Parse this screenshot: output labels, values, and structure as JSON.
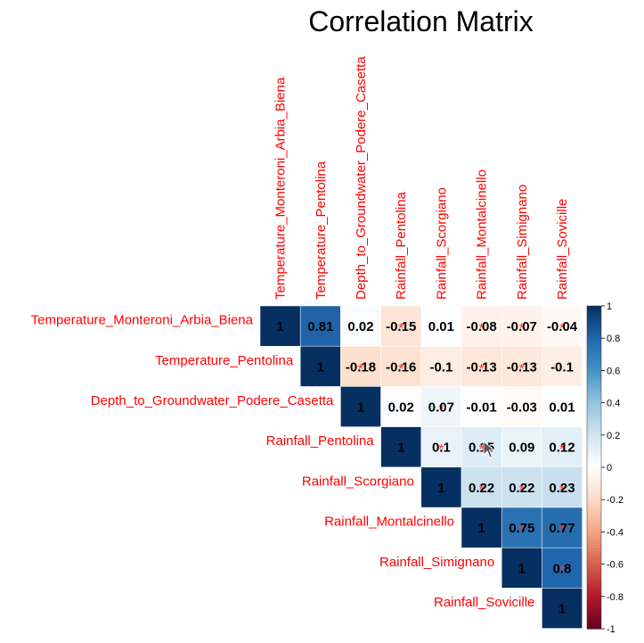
{
  "title": "Correlation Matrix",
  "colors": {
    "label": "#ff0000",
    "value_text": "#000000",
    "palette_neg": "#67001f",
    "palette_mid": "#ffffff",
    "palette_pos": "#053061"
  },
  "chart_data": {
    "type": "heatmap",
    "title": "Correlation Matrix",
    "layout": "upper-triangle",
    "variables": [
      "Temperature_Monteroni_Arbia_Biena",
      "Temperature_Pentolina",
      "Depth_to_Groundwater_Podere_Casetta",
      "Rainfall_Pentolina",
      "Rainfall_Scorgiano",
      "Rainfall_Montalcinello",
      "Rainfall_Simignano",
      "Rainfall_Sovicille"
    ],
    "values": [
      [
        1,
        0.81,
        0.02,
        -0.15,
        0.01,
        -0.08,
        -0.07,
        -0.04
      ],
      [
        null,
        1,
        -0.18,
        -0.16,
        -0.1,
        -0.13,
        -0.13,
        -0.1
      ],
      [
        null,
        null,
        1,
        0.02,
        0.07,
        -0.01,
        -0.03,
        0.01
      ],
      [
        null,
        null,
        null,
        1,
        0.1,
        0.15,
        0.09,
        0.12
      ],
      [
        null,
        null,
        null,
        null,
        1,
        0.22,
        0.22,
        0.23
      ],
      [
        null,
        null,
        null,
        null,
        null,
        1,
        0.75,
        0.77
      ],
      [
        null,
        null,
        null,
        null,
        null,
        null,
        1,
        0.8
      ],
      [
        null,
        null,
        null,
        null,
        null,
        null,
        null,
        1
      ]
    ],
    "insignificant_marker": "*",
    "insignificant": [
      [
        0,
        3
      ],
      [
        0,
        5
      ],
      [
        0,
        6
      ],
      [
        0,
        7
      ],
      [
        1,
        2
      ],
      [
        1,
        3
      ],
      [
        1,
        5
      ],
      [
        1,
        6
      ],
      [
        2,
        4
      ],
      [
        3,
        4
      ],
      [
        3,
        5
      ],
      [
        3,
        7
      ],
      [
        4,
        5
      ],
      [
        4,
        6
      ],
      [
        4,
        7
      ],
      [
        5,
        6
      ],
      [
        5,
        7
      ],
      [
        6,
        7
      ]
    ],
    "colorbar": {
      "range": [
        -1,
        1
      ],
      "ticks": [
        "1",
        "0.8",
        "0.6",
        "0.4",
        "0.2",
        "0",
        "-0.2",
        "-0.4",
        "-0.6",
        "-0.8",
        "-1"
      ]
    }
  }
}
